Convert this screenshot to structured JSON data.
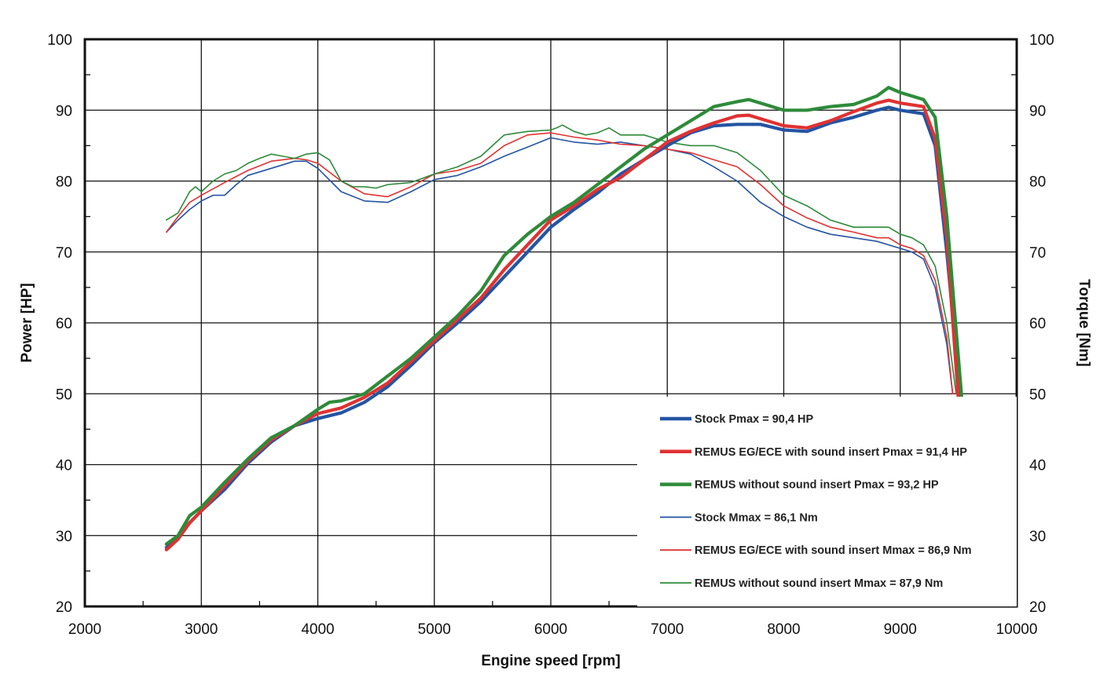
{
  "chart_data": {
    "type": "line",
    "title": "",
    "xlabel": "Engine speed [rpm]",
    "ylabel_left": "Power [HP]",
    "ylabel_right": "Torque [Nm]",
    "xlim": [
      2000,
      10000
    ],
    "ylim_left": [
      20,
      100
    ],
    "ylim_right": [
      20,
      100
    ],
    "x_ticks": [
      "2000",
      "3000",
      "4000",
      "5000",
      "6000",
      "7000",
      "8000",
      "9000",
      "10000"
    ],
    "y_ticks_left": [
      "20",
      "30",
      "40",
      "50",
      "60",
      "70",
      "80",
      "90",
      "100"
    ],
    "y_ticks_right": [
      "20",
      "30",
      "40",
      "50",
      "60",
      "70",
      "80",
      "90",
      "100"
    ],
    "grid": true,
    "legend_position": "bottom-right",
    "series": [
      {
        "name": "Stock Pmax = 90,4 HP",
        "axis": "left",
        "color": "#2454a3",
        "weight": "thick",
        "x": [
          2700,
          2800,
          2900,
          3000,
          3200,
          3400,
          3600,
          3800,
          4000,
          4200,
          4400,
          4600,
          4800,
          5000,
          5200,
          5400,
          5600,
          5800,
          6000,
          6200,
          6400,
          6600,
          6800,
          7000,
          7200,
          7400,
          7600,
          7800,
          8000,
          8200,
          8400,
          8600,
          8800,
          8900,
          9000,
          9200,
          9300,
          9400,
          9520
        ],
        "y": [
          28.3,
          29.8,
          31.8,
          33.5,
          36.5,
          40.2,
          43.2,
          45.5,
          46.5,
          47.3,
          48.8,
          51.0,
          54.0,
          57.2,
          60.0,
          63.0,
          66.5,
          70.0,
          73.5,
          76.0,
          78.3,
          81.0,
          83.0,
          85.0,
          86.8,
          87.8,
          88.0,
          88.0,
          87.2,
          87.0,
          88.2,
          89.0,
          90.0,
          90.4,
          90.0,
          89.5,
          85.0,
          70.0,
          49.0
        ]
      },
      {
        "name": "REMUS EG/ECE with sound insert Pmax = 91,4 HP",
        "axis": "left",
        "color": "#e03232",
        "weight": "thick",
        "x": [
          2700,
          2800,
          2900,
          3000,
          3200,
          3400,
          3600,
          3800,
          4000,
          4200,
          4400,
          4600,
          4800,
          5000,
          5200,
          5400,
          5600,
          5800,
          6000,
          6200,
          6400,
          6600,
          6800,
          7000,
          7200,
          7400,
          7600,
          7700,
          7800,
          8000,
          8200,
          8400,
          8600,
          8800,
          8900,
          9000,
          9200,
          9300,
          9400,
          9500
        ],
        "y": [
          28.0,
          29.5,
          31.8,
          33.5,
          37.0,
          40.5,
          43.5,
          45.5,
          47.2,
          48.0,
          49.5,
          51.5,
          54.5,
          57.5,
          60.5,
          63.5,
          67.5,
          71.0,
          74.5,
          76.5,
          78.8,
          80.5,
          83.0,
          85.5,
          87.0,
          88.2,
          89.2,
          89.3,
          88.8,
          87.8,
          87.5,
          88.5,
          89.8,
          91.0,
          91.4,
          91.0,
          90.5,
          86.0,
          72.0,
          49.0
        ]
      },
      {
        "name": "REMUS without sound insert Pmax = 93,2 HP",
        "axis": "left",
        "color": "#2e8b3a",
        "weight": "thick",
        "x": [
          2700,
          2800,
          2900,
          3000,
          3200,
          3400,
          3600,
          3800,
          4000,
          4100,
          4200,
          4400,
          4600,
          4800,
          5000,
          5200,
          5400,
          5600,
          5800,
          6000,
          6100,
          6200,
          6400,
          6600,
          6800,
          7000,
          7200,
          7400,
          7600,
          7700,
          7800,
          8000,
          8200,
          8400,
          8600,
          8800,
          8900,
          9000,
          9100,
          9200,
          9300,
          9400,
          9530
        ],
        "y": [
          28.8,
          30.0,
          32.8,
          34.0,
          37.5,
          40.8,
          43.8,
          45.5,
          47.8,
          48.8,
          49.0,
          50.0,
          52.5,
          55.0,
          58.0,
          61.0,
          64.5,
          69.5,
          72.5,
          75.0,
          76.0,
          77.0,
          79.5,
          82.0,
          84.5,
          86.5,
          88.5,
          90.5,
          91.2,
          91.5,
          91.0,
          90.0,
          90.0,
          90.5,
          90.8,
          92.0,
          93.2,
          92.5,
          92.0,
          91.5,
          89.0,
          75.0,
          49.0
        ]
      },
      {
        "name": "Stock Mmax = 86,1 Nm",
        "axis": "right",
        "color": "#2454a3",
        "weight": "thin",
        "x": [
          2700,
          2800,
          2900,
          3000,
          3100,
          3200,
          3300,
          3400,
          3600,
          3800,
          3900,
          4000,
          4200,
          4400,
          4600,
          4800,
          5000,
          5200,
          5400,
          5600,
          5800,
          6000,
          6200,
          6400,
          6600,
          6800,
          7000,
          7200,
          7400,
          7600,
          7800,
          8000,
          8200,
          8400,
          8600,
          8800,
          9000,
          9100,
          9200,
          9300,
          9400,
          9450
        ],
        "y": [
          72.8,
          74.5,
          76.0,
          77.2,
          78.0,
          78.0,
          79.5,
          80.8,
          81.8,
          82.8,
          82.8,
          81.8,
          78.5,
          77.2,
          77.0,
          78.5,
          80.2,
          80.8,
          82.0,
          83.5,
          84.8,
          86.1,
          85.5,
          85.2,
          85.5,
          85.0,
          84.5,
          83.8,
          82.0,
          80.0,
          77.0,
          75.0,
          73.5,
          72.5,
          72.0,
          71.5,
          70.5,
          70.0,
          69.0,
          65.0,
          57.0,
          50.0
        ]
      },
      {
        "name": "REMUS EG/ECE with sound insert Mmax = 86,9 Nm",
        "axis": "right",
        "color": "#e03232",
        "weight": "thin",
        "x": [
          2700,
          2800,
          2900,
          3000,
          3200,
          3400,
          3600,
          3800,
          3900,
          4000,
          4200,
          4400,
          4600,
          4800,
          5000,
          5200,
          5400,
          5600,
          5800,
          6000,
          6200,
          6400,
          6600,
          6800,
          7000,
          7200,
          7400,
          7600,
          7800,
          8000,
          8200,
          8400,
          8600,
          8800,
          8900,
          9000,
          9100,
          9200,
          9300,
          9400,
          9450
        ],
        "y": [
          72.8,
          75.0,
          77.0,
          78.0,
          79.8,
          81.5,
          82.8,
          83.2,
          83.0,
          82.5,
          80.0,
          78.2,
          77.8,
          79.2,
          81.0,
          81.5,
          82.5,
          85.0,
          86.5,
          86.8,
          86.2,
          85.8,
          85.2,
          85.0,
          84.5,
          84.0,
          83.0,
          82.0,
          79.5,
          76.5,
          74.8,
          73.5,
          72.8,
          72.0,
          72.0,
          71.0,
          70.5,
          69.5,
          66.0,
          58.0,
          50.0
        ]
      },
      {
        "name": "REMUS without sound insert Mmax = 87,9 Nm",
        "axis": "right",
        "color": "#2e8b3a",
        "weight": "thin",
        "x": [
          2700,
          2800,
          2900,
          2950,
          3000,
          3100,
          3200,
          3300,
          3400,
          3500,
          3600,
          3700,
          3800,
          3900,
          4000,
          4100,
          4200,
          4300,
          4400,
          4500,
          4600,
          4800,
          5000,
          5200,
          5400,
          5600,
          5800,
          6000,
          6050,
          6100,
          6200,
          6300,
          6400,
          6500,
          6600,
          6800,
          7000,
          7200,
          7400,
          7600,
          7800,
          8000,
          8200,
          8400,
          8600,
          8800,
          8900,
          9000,
          9100,
          9200,
          9300,
          9400,
          9480
        ],
        "y": [
          74.5,
          75.5,
          78.5,
          79.2,
          78.5,
          80.0,
          81.0,
          81.5,
          82.5,
          83.2,
          83.8,
          83.5,
          83.2,
          83.8,
          84.0,
          83.0,
          80.0,
          79.2,
          79.2,
          79.0,
          79.5,
          79.8,
          81.0,
          82.0,
          83.5,
          86.5,
          87.0,
          87.2,
          87.5,
          87.9,
          87.0,
          86.5,
          86.8,
          87.5,
          86.5,
          86.5,
          85.5,
          85.0,
          85.0,
          84.0,
          81.5,
          78.0,
          76.5,
          74.5,
          73.5,
          73.5,
          73.5,
          72.5,
          72.0,
          71.0,
          68.0,
          60.0,
          50.0
        ]
      }
    ]
  }
}
